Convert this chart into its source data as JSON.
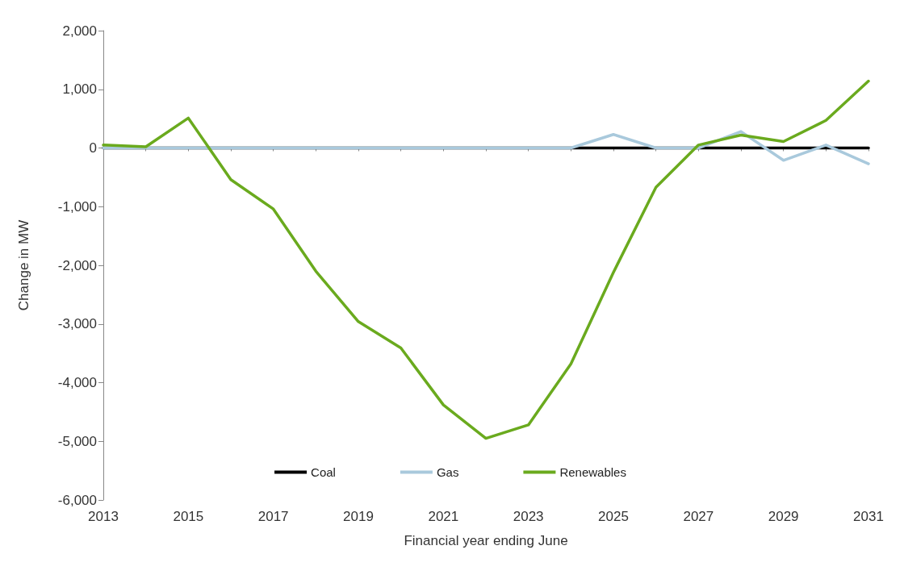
{
  "chart_data": {
    "type": "line",
    "xlabel": "Financial year ending June",
    "ylabel": "Change in MW",
    "categories": [
      "2013",
      null,
      "2015",
      null,
      "2017",
      null,
      "2019",
      null,
      "2021",
      null,
      "2023",
      null,
      "2025",
      null,
      "2027",
      null,
      "2029",
      null,
      "2031"
    ],
    "series": [
      {
        "name": "Coal",
        "color": "#000000",
        "values": [
          0,
          0,
          0,
          0,
          0,
          0,
          0,
          0,
          0,
          0,
          0,
          0,
          0,
          0,
          0,
          0,
          0,
          0,
          0
        ]
      },
      {
        "name": "Gas",
        "color": "#a9c9dc",
        "values": [
          0,
          0,
          0,
          0,
          0,
          0,
          0,
          0,
          0,
          0,
          0,
          0,
          230,
          0,
          0,
          280,
          -210,
          50,
          -270
        ]
      },
      {
        "name": "Renewables",
        "color": "#6aaa1e",
        "values": [
          50,
          20,
          510,
          -540,
          -1040,
          -2100,
          -2960,
          -3410,
          -4380,
          -4950,
          -4720,
          -3680,
          -2120,
          -670,
          50,
          220,
          110,
          470,
          1140
        ]
      }
    ],
    "ylim": [
      -6000,
      2000
    ],
    "yticks": [
      {
        "value": -6000,
        "label": "-6,000"
      },
      {
        "value": -5000,
        "label": "-5,000"
      },
      {
        "value": -4000,
        "label": "-4,000"
      },
      {
        "value": -3000,
        "label": "-3,000"
      },
      {
        "value": -2000,
        "label": "-2,000"
      },
      {
        "value": -1000,
        "label": "-1,000"
      },
      0,
      {
        "value": 1000,
        "label": "1,000"
      },
      {
        "value": 2000,
        "label": "2,000"
      }
    ],
    "grid": false,
    "legend": "bottom",
    "marker": "none",
    "line_style": "solid"
  }
}
